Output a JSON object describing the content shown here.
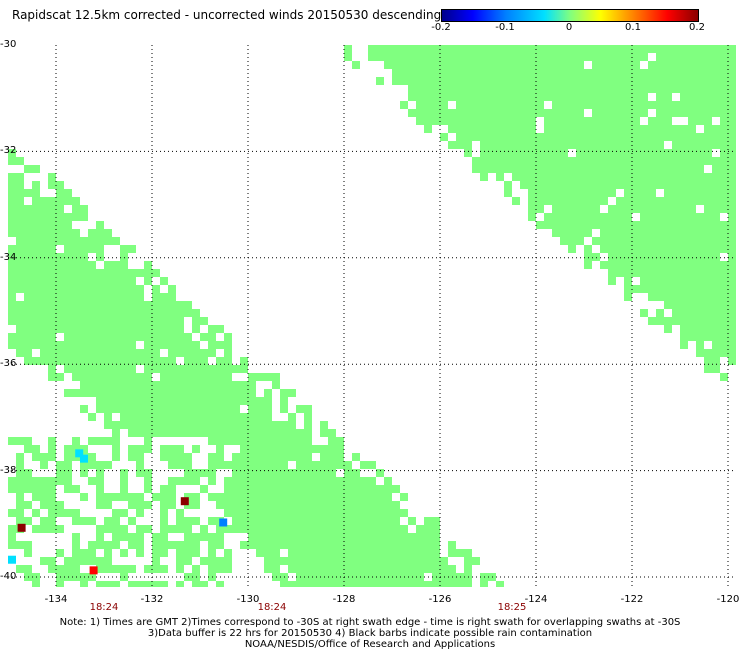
{
  "header": {
    "title": "Rapidscat 12.5km corrected - uncorrected winds 20150530 descending"
  },
  "colorbar": {
    "ticks": [
      {
        "label": "-0.2",
        "value": -0.2
      },
      {
        "label": "-0.1",
        "value": -0.1
      },
      {
        "label": "0",
        "value": 0
      },
      {
        "label": "0.1",
        "value": 0.1
      },
      {
        "label": "0.2",
        "value": 0.2
      }
    ],
    "range": [
      -0.2,
      0.2
    ],
    "colors": [
      "#00008b",
      "#0000ff",
      "#0080ff",
      "#00e0ff",
      "#80ff80",
      "#ffff00",
      "#ff8000",
      "#ff0000",
      "#8b0000"
    ]
  },
  "map": {
    "lat_range": [
      -40,
      -30
    ],
    "lon_range": [
      -135,
      -120
    ],
    "lat_ticks": [
      "-30",
      "-32",
      "-34",
      "-36",
      "-38",
      "-40"
    ],
    "lon_ticks": [
      "-134",
      "-132",
      "-130",
      "-128",
      "-126",
      "-124",
      "-122",
      "-120"
    ],
    "time_labels": [
      {
        "text": "18:24",
        "lon": -133
      },
      {
        "text": "18:24",
        "lon": -129.5
      },
      {
        "text": "18:25",
        "lon": -124.5
      }
    ],
    "grid": true,
    "colors": {
      "swath": "#80ff80",
      "grid": "#000000"
    },
    "anomalies": [
      {
        "lat": -37.6,
        "lon": -133.6,
        "value": -0.06
      },
      {
        "lat": -37.7,
        "lon": -133.5,
        "value": -0.05
      },
      {
        "lat": -38.5,
        "lon": -131.4,
        "value": 0.2
      },
      {
        "lat": -38.9,
        "lon": -130.6,
        "value": -0.08
      },
      {
        "lat": -39.0,
        "lon": -134.8,
        "value": 0.2
      },
      {
        "lat": -39.6,
        "lon": -135.0,
        "value": -0.05
      },
      {
        "lat": -39.8,
        "lon": -133.3,
        "value": 0.16
      }
    ]
  },
  "footer": {
    "note_line1": "Note: 1) Times are GMT 2)Times correspond to -30S at right swath edge - time is right swath for overlapping swaths at -30S",
    "note_line2": "3)Data buffer is 22 hrs for 20150530 4) Black barbs indicate possible rain contamination",
    "note_line3": "NOAA/NESDIS/Office of Research and Applications"
  }
}
